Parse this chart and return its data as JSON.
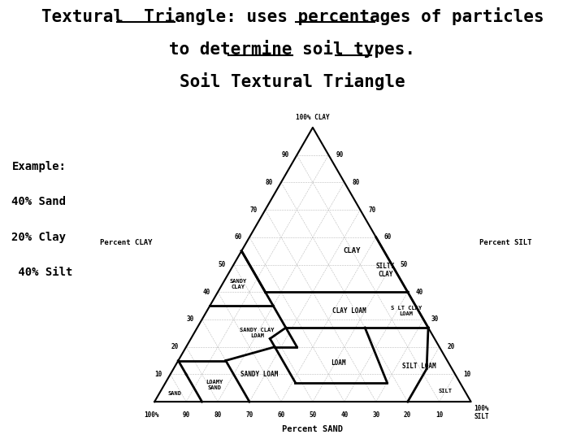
{
  "title_line1": "Textural  Triangle: uses percentages of particles",
  "title_line2": "to determine soil types.",
  "title_line3": "Soil Textural Triangle",
  "example_text": [
    "Example:",
    "40% Sand",
    "20% Clay",
    " 40% Silt"
  ],
  "background_color": "#ffffff",
  "soil_boundaries": [
    [
      [
        40,
        0,
        60
      ],
      [
        40,
        45,
        15
      ]
    ],
    [
      [
        40,
        0,
        60
      ],
      [
        60,
        0,
        40
      ]
    ],
    [
      [
        35,
        45,
        20
      ],
      [
        55,
        45,
        0
      ]
    ],
    [
      [
        35,
        45,
        20
      ],
      [
        35,
        65,
        0
      ]
    ],
    [
      [
        40,
        45,
        15
      ],
      [
        55,
        45,
        0
      ]
    ],
    [
      [
        27,
        0,
        73
      ],
      [
        40,
        0,
        60
      ]
    ],
    [
      [
        27,
        0,
        73
      ],
      [
        27,
        20,
        53
      ]
    ],
    [
      [
        27,
        20,
        53
      ],
      [
        27,
        45,
        28
      ]
    ],
    [
      [
        20,
        45,
        35
      ],
      [
        35,
        45,
        20
      ]
    ],
    [
      [
        20,
        45,
        35
      ],
      [
        20,
        52,
        28
      ]
    ],
    [
      [
        23,
        52,
        25
      ],
      [
        27,
        45,
        28
      ]
    ],
    [
      [
        7,
        52,
        41
      ],
      [
        23,
        52,
        25
      ]
    ],
    [
      [
        7,
        23,
        70
      ],
      [
        7,
        52,
        41
      ]
    ],
    [
      [
        7,
        23,
        70
      ],
      [
        27,
        20,
        53
      ]
    ],
    [
      [
        0,
        20,
        80
      ],
      [
        12,
        8,
        80
      ]
    ],
    [
      [
        12,
        8,
        80
      ],
      [
        27,
        0,
        73
      ]
    ],
    [
      [
        15,
        85,
        0
      ],
      [
        15,
        70,
        15
      ]
    ],
    [
      [
        15,
        70,
        15
      ],
      [
        20,
        52,
        28
      ]
    ],
    [
      [
        0,
        85,
        15
      ],
      [
        10,
        85,
        5
      ]
    ],
    [
      [
        10,
        85,
        5
      ],
      [
        15,
        85,
        0
      ]
    ],
    [
      [
        0,
        70,
        30
      ],
      [
        15,
        70,
        15
      ]
    ]
  ],
  "region_labels": [
    [
      55,
      10,
      35,
      "CLAY",
      6.5
    ],
    [
      48,
      3,
      49,
      "SILTY\nCLAY",
      5.5
    ],
    [
      43,
      52,
      5,
      "SANDY\nCLAY",
      5.0
    ],
    [
      33,
      22,
      45,
      "CLAY LOAM",
      5.5
    ],
    [
      33,
      4,
      63,
      "S LT CLAY\nLOAM",
      5.0
    ],
    [
      25,
      55,
      20,
      "SANDY CLAY\nLOAM",
      5.0
    ],
    [
      14,
      35,
      51,
      "LOAM",
      5.5
    ],
    [
      13,
      10,
      77,
      "SILT LOAM",
      5.5
    ],
    [
      10,
      62,
      28,
      "SANDY LOAM",
      5.5
    ],
    [
      6,
      78,
      16,
      "LOAMY\nSAND",
      5.0
    ],
    [
      3,
      92,
      5,
      "SAND",
      5.0
    ],
    [
      4,
      6,
      90,
      "SILT",
      5.0
    ]
  ]
}
